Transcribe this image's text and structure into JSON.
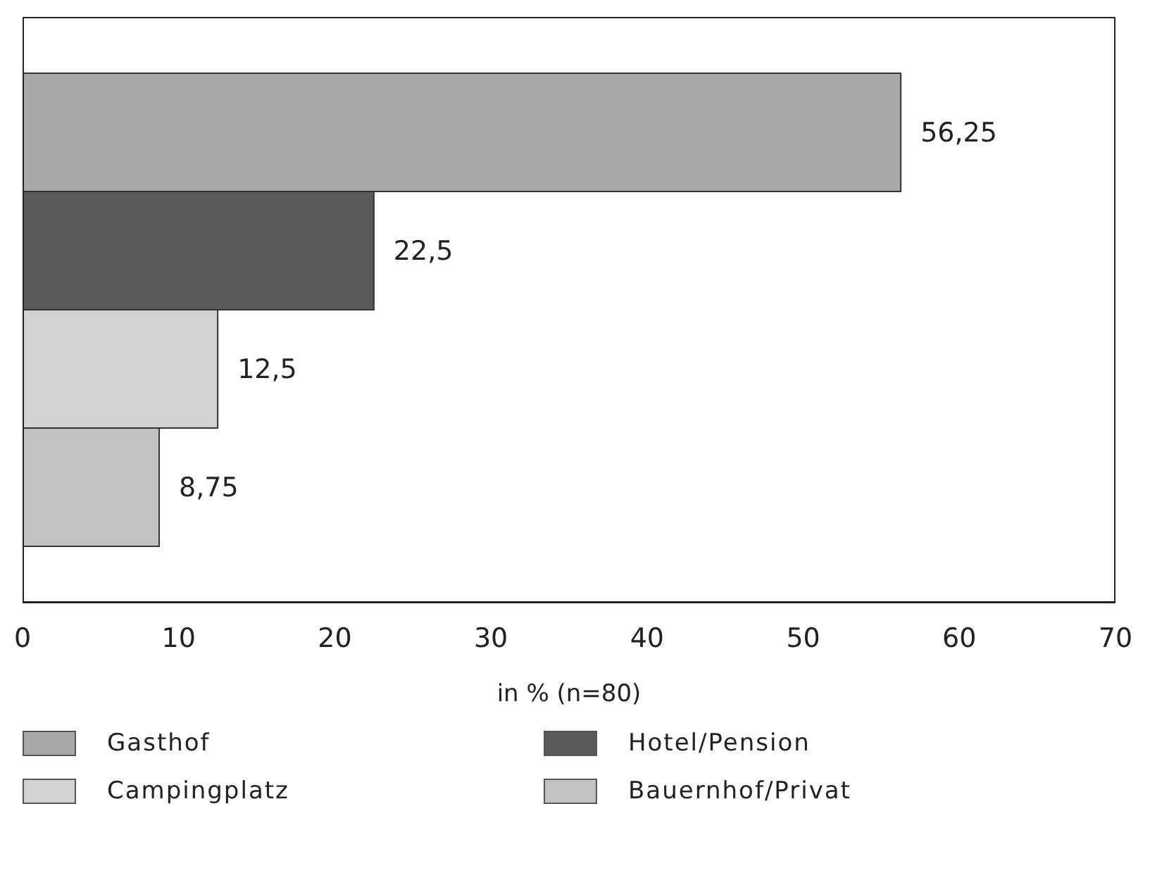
{
  "chart_data": {
    "type": "bar",
    "orientation": "horizontal",
    "stacked": true,
    "xlabel": "in % (n=80)",
    "categories": [
      null,
      null,
      null,
      null
    ],
    "series": [
      {
        "name": "Gasthof",
        "color": "#a9a9a9",
        "values": [
          56.25,
          null,
          null,
          null
        ],
        "value_labels": [
          "56,25",
          null,
          null,
          null
        ]
      },
      {
        "name": "Hotel/Pension",
        "color": "#5a5a5a",
        "values": [
          null,
          22.5,
          null,
          null
        ],
        "value_labels": [
          null,
          "22,5",
          null,
          null
        ]
      },
      {
        "name": "Campingplatz",
        "color": "#d2d2d2",
        "values": [
          null,
          null,
          12.5,
          null
        ],
        "value_labels": [
          null,
          null,
          "12,5",
          null
        ]
      },
      {
        "name": "Bauernhof/Privat",
        "color": "#c2c2c2",
        "values": [
          null,
          null,
          null,
          8.75
        ],
        "value_labels": [
          null,
          null,
          null,
          "8,75"
        ]
      }
    ],
    "xlim": [
      0,
      70
    ],
    "xticks": [
      0,
      10,
      20,
      30,
      40,
      50,
      60,
      70
    ],
    "tick_labels": "x",
    "legend": "bottom"
  }
}
